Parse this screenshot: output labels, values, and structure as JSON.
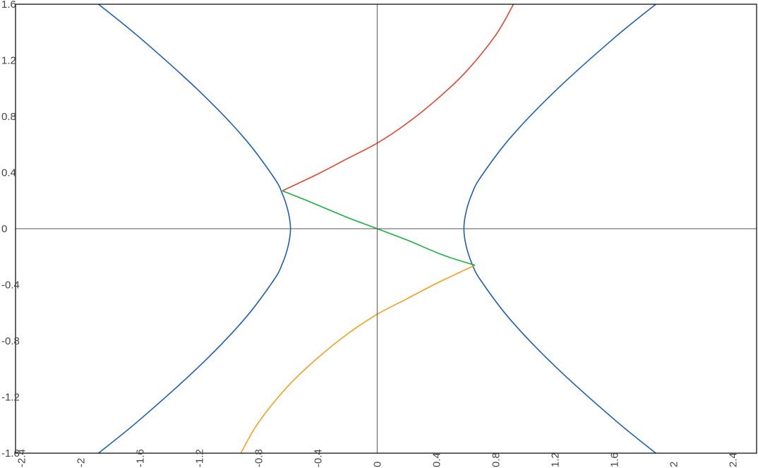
{
  "chart_data": {
    "type": "line",
    "title": "",
    "xlabel": "",
    "ylabel": "",
    "xlim": [
      -2.44,
      2.56
    ],
    "ylim": [
      -1.6,
      1.6
    ],
    "grid": false,
    "x_ticks": [
      "-2.4",
      "-2",
      "-1.6",
      "-1.2",
      "-0.8",
      "-0.4",
      "0",
      "0.4",
      "0.8",
      "1.2",
      "1.6",
      "2",
      "2.4"
    ],
    "y_ticks": [
      "1.6",
      "1.2",
      "0.8",
      "0.4",
      "0",
      "-0.4",
      "-0.8",
      "-1.2",
      "-1.6"
    ],
    "colors": {
      "axis": "#555555",
      "frame": "#000000",
      "hyperbola": "#1f5fb0",
      "upper_curve": "#e8412c",
      "lower_curve": "#f0a020",
      "middle_curve": "#18b040"
    },
    "series": [
      {
        "color_key": "hyperbola",
        "points": [
          [
            -1.88,
            1.6
          ],
          [
            -1.6,
            1.36
          ],
          [
            -1.2,
            0.98
          ],
          [
            -0.9,
            0.65
          ],
          [
            -0.7,
            0.37
          ],
          [
            -0.64,
            0.25
          ],
          [
            -0.6,
            0.12
          ],
          [
            -0.585,
            0.0
          ],
          [
            -0.6,
            -0.12
          ],
          [
            -0.64,
            -0.25
          ],
          [
            -0.7,
            -0.37
          ],
          [
            -0.9,
            -0.65
          ],
          [
            -1.2,
            -0.98
          ],
          [
            -1.6,
            -1.36
          ],
          [
            -1.88,
            -1.6
          ]
        ]
      },
      {
        "color_key": "hyperbola",
        "points": [
          [
            1.88,
            1.6
          ],
          [
            1.6,
            1.36
          ],
          [
            1.2,
            0.98
          ],
          [
            0.9,
            0.65
          ],
          [
            0.7,
            0.37
          ],
          [
            0.64,
            0.25
          ],
          [
            0.6,
            0.12
          ],
          [
            0.585,
            0.0
          ],
          [
            0.6,
            -0.12
          ],
          [
            0.64,
            -0.25
          ],
          [
            0.7,
            -0.37
          ],
          [
            0.9,
            -0.65
          ],
          [
            1.2,
            -0.98
          ],
          [
            1.6,
            -1.36
          ],
          [
            1.88,
            -1.6
          ]
        ]
      },
      {
        "color_key": "upper_curve",
        "points": [
          [
            -0.64,
            0.27
          ],
          [
            -0.4,
            0.39
          ],
          [
            -0.2,
            0.5
          ],
          [
            0.0,
            0.61
          ],
          [
            0.2,
            0.75
          ],
          [
            0.4,
            0.92
          ],
          [
            0.6,
            1.12
          ],
          [
            0.8,
            1.38
          ],
          [
            0.92,
            1.6
          ]
        ]
      },
      {
        "color_key": "lower_curve",
        "points": [
          [
            -0.92,
            -1.6
          ],
          [
            -0.8,
            -1.38
          ],
          [
            -0.6,
            -1.12
          ],
          [
            -0.4,
            -0.92
          ],
          [
            -0.2,
            -0.75
          ],
          [
            0.0,
            -0.61
          ],
          [
            0.2,
            -0.5
          ],
          [
            0.4,
            -0.39
          ],
          [
            0.66,
            -0.26
          ]
        ]
      },
      {
        "color_key": "middle_curve",
        "points": [
          [
            -0.64,
            0.27
          ],
          [
            -0.45,
            0.19
          ],
          [
            -0.2,
            0.08
          ],
          [
            0.0,
            0.0
          ],
          [
            0.2,
            -0.08
          ],
          [
            0.45,
            -0.19
          ],
          [
            0.66,
            -0.26
          ]
        ]
      }
    ]
  }
}
